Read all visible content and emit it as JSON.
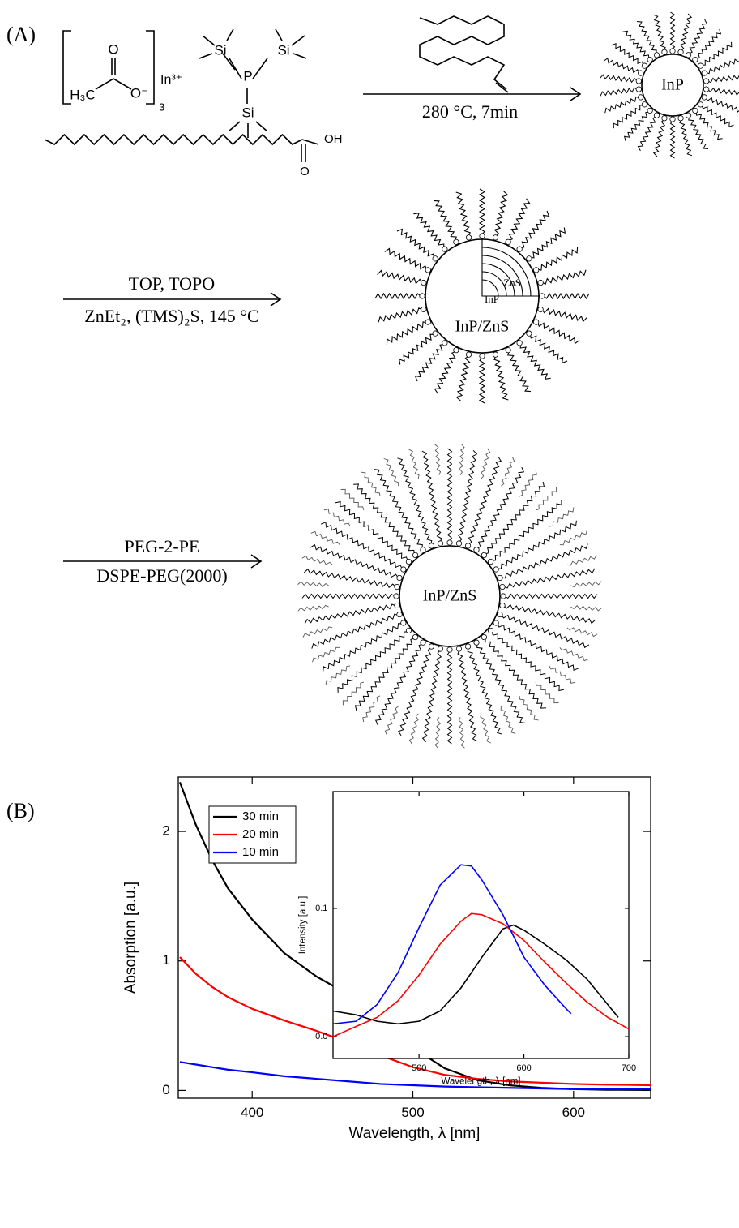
{
  "diagram": {
    "panel_label": "(A)",
    "reagents": {
      "acetate_o": "O",
      "acetate_o_minus": "O⁻",
      "acetate_methyl": "H₃C",
      "acetate_count": "3",
      "indium": "In³⁺",
      "silyl_1": "Si",
      "silyl_2": "Si",
      "silyl_3": "Si",
      "phosphorus": "P",
      "acid_oh": "OH",
      "acid_o": "O"
    },
    "steps": [
      {
        "above": "280 °C, 7min"
      },
      {
        "above": "TOP, TOPO",
        "below": "ZnEt₂, (TMS)₂S, 145 °C"
      },
      {
        "above": "PEG-2-PE",
        "below": "DSPE-PEG(2000)"
      }
    ],
    "particles": [
      {
        "label": "InP"
      },
      {
        "label": "InP/ZnS",
        "shell": "ZnS",
        "core": "InP"
      },
      {
        "label": "InP/ZnS"
      }
    ]
  },
  "chart_data": [
    {
      "type": "line",
      "panel_label": "(B)",
      "x_label": "Wavelength, λ [nm]",
      "y_label": "Absorption [a.u.]",
      "x": [
        355,
        365,
        375,
        385,
        400,
        420,
        440,
        460,
        480,
        500,
        520,
        540,
        560,
        580,
        600,
        620,
        648
      ],
      "series": [
        {
          "name": "30 min",
          "color": "#000000",
          "values": [
            2.38,
            2.05,
            1.78,
            1.56,
            1.32,
            1.06,
            0.88,
            0.74,
            0.55,
            0.33,
            0.17,
            0.08,
            0.04,
            0.02,
            0.01,
            0.005,
            0.003
          ]
        },
        {
          "name": "20 min",
          "color": "#ff0000",
          "values": [
            1.03,
            0.9,
            0.8,
            0.72,
            0.63,
            0.54,
            0.46,
            0.37,
            0.27,
            0.18,
            0.12,
            0.09,
            0.07,
            0.06,
            0.05,
            0.045,
            0.04
          ]
        },
        {
          "name": "10 min",
          "color": "#0000ff",
          "values": [
            0.22,
            0.2,
            0.18,
            0.16,
            0.14,
            0.11,
            0.09,
            0.07,
            0.05,
            0.04,
            0.03,
            0.025,
            0.02,
            0.015,
            0.01,
            0.01,
            0.01
          ]
        }
      ],
      "xlim": [
        354,
        648
      ],
      "ylim": [
        -0.06,
        2.42
      ],
      "xticks": [
        400,
        500,
        600
      ],
      "yticks": [
        0,
        1,
        2
      ],
      "legend": "upper left"
    },
    {
      "type": "line",
      "x_label": "Wavelength, λ [nm]",
      "y_label": "Intensity [a.u.]",
      "series": [
        {
          "color": "#000000",
          "x": [
            418,
            440,
            460,
            480,
            500,
            520,
            540,
            560,
            580,
            590,
            600,
            620,
            640,
            660,
            680,
            690
          ],
          "values": [
            0.02,
            0.017,
            0.012,
            0.01,
            0.012,
            0.02,
            0.038,
            0.062,
            0.084,
            0.087,
            0.083,
            0.072,
            0.06,
            0.045,
            0.025,
            0.015
          ]
        },
        {
          "color": "#ff0000",
          "x": [
            418,
            440,
            460,
            480,
            500,
            520,
            540,
            550,
            560,
            580,
            600,
            620,
            640,
            660,
            680,
            700
          ],
          "values": [
            0.0,
            0.008,
            0.015,
            0.028,
            0.048,
            0.072,
            0.09,
            0.096,
            0.095,
            0.088,
            0.075,
            0.058,
            0.042,
            0.027,
            0.015,
            0.006
          ]
        },
        {
          "color": "#0000ff",
          "x": [
            418,
            440,
            460,
            480,
            500,
            520,
            540,
            550,
            560,
            580,
            600,
            620,
            640,
            645
          ],
          "values": [
            0.01,
            0.012,
            0.025,
            0.05,
            0.085,
            0.118,
            0.134,
            0.133,
            0.122,
            0.095,
            0.062,
            0.04,
            0.022,
            0.018
          ]
        }
      ],
      "xlim": [
        418,
        700
      ],
      "ylim": [
        -0.017,
        0.191
      ],
      "xticks": [
        500,
        600,
        700
      ],
      "yticks": [
        {
          "value": 0,
          "label": "0.0"
        },
        0.1
      ]
    }
  ]
}
